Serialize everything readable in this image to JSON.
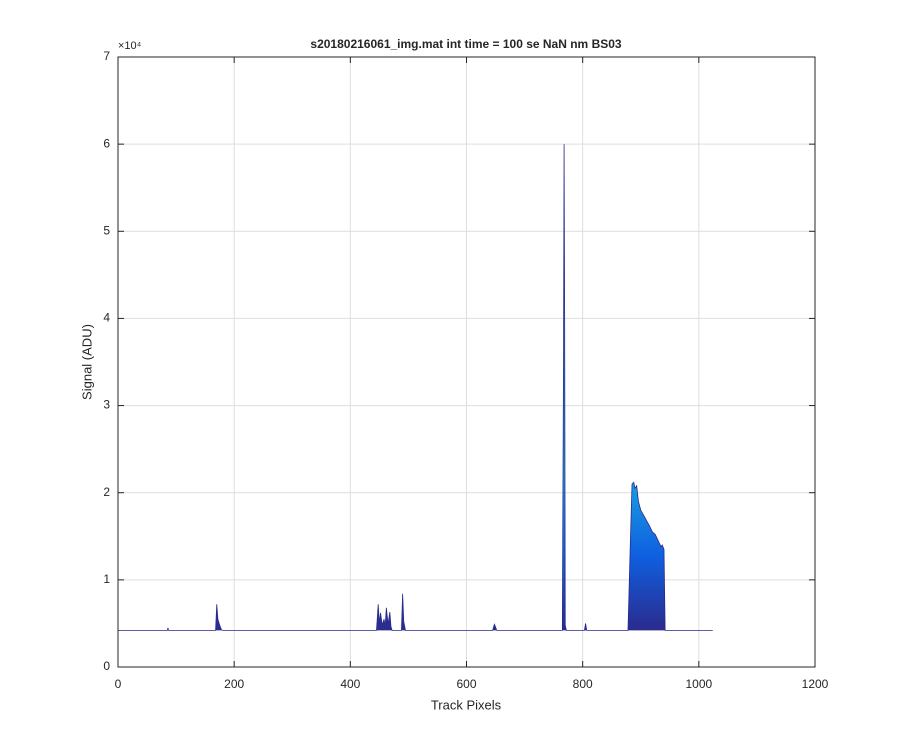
{
  "chart_data": {
    "type": "area",
    "title": "s20180216061_img.mat int time = 100 se  NaN nm BS03",
    "x_label": "Track Pixels",
    "y_label": "Signal (ADU)",
    "y_exponent_label": "×10⁴",
    "grid": true,
    "xlim": [
      0,
      1200
    ],
    "xticks": [
      0,
      200,
      400,
      600,
      800,
      1000,
      1200
    ],
    "ylim": [
      0,
      70000
    ],
    "yticks": [
      {
        "value": 0,
        "label": "0"
      },
      {
        "value": 10000,
        "label": "1"
      },
      {
        "value": 20000,
        "label": "2"
      },
      {
        "value": 30000,
        "label": "3"
      },
      {
        "value": 40000,
        "label": "4"
      },
      {
        "value": 50000,
        "label": "5"
      },
      {
        "value": 60000,
        "label": "6"
      },
      {
        "value": 70000,
        "label": "7"
      }
    ],
    "series": [
      {
        "color": "#2a2a8a",
        "x": [
          0,
          85,
          86,
          87,
          168,
          170,
          172,
          175,
          178,
          180,
          445,
          448,
          450,
          452,
          455,
          458,
          460,
          462,
          465,
          468,
          470,
          472,
          488,
          490,
          492,
          495,
          645,
          648,
          650,
          652,
          765,
          767,
          768,
          769,
          770,
          772,
          803,
          805,
          807,
          878,
          882,
          885,
          888,
          890,
          893,
          896,
          900,
          905,
          910,
          915,
          920,
          925,
          930,
          935,
          937,
          940,
          942,
          1024
        ],
        "values": [
          4200,
          4200,
          4500,
          4200,
          4200,
          7200,
          5500,
          4800,
          4300,
          4200,
          4200,
          7200,
          5000,
          6200,
          4800,
          5500,
          4700,
          6800,
          4900,
          6300,
          4600,
          4200,
          4200,
          8400,
          5200,
          4200,
          4200,
          4900,
          4600,
          4200,
          4200,
          35000,
          60000,
          40000,
          4800,
          4200,
          4200,
          5000,
          4200,
          4200,
          14000,
          21000,
          21200,
          20500,
          20800,
          19000,
          18000,
          17400,
          16800,
          16200,
          15500,
          15200,
          14500,
          13800,
          14000,
          13500,
          4200,
          4200
        ]
      }
    ]
  }
}
